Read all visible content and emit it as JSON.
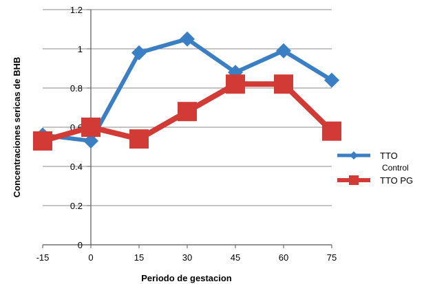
{
  "chart_data": {
    "type": "line",
    "title": "",
    "xlabel": "Periodo de gestacion",
    "ylabel": "Concentraciones sericas de BHB",
    "x": [
      -15,
      0,
      15,
      30,
      45,
      60,
      75
    ],
    "x_tick_labels": [
      "-15",
      "0",
      "15",
      "30",
      "45",
      "60",
      "75"
    ],
    "ylim": [
      0,
      1.2
    ],
    "y_tick_values": [
      0,
      0.2,
      0.4,
      0.6,
      0.8,
      1,
      1.2
    ],
    "y_tick_labels": [
      "0",
      "0.2",
      "0.4",
      "0.6",
      "0.8",
      "1",
      "1.2"
    ],
    "grid": true,
    "legend_position": "right",
    "series": [
      {
        "name": "TTO Control",
        "legend_lines": [
          "TTO",
          "Control"
        ],
        "color": "#3a7fc4",
        "marker": "diamond",
        "values": [
          0.56,
          0.53,
          0.98,
          1.05,
          0.88,
          0.99,
          0.84
        ]
      },
      {
        "name": "TTO PG",
        "legend_lines": [
          "TTO PG"
        ],
        "color": "#d23a36",
        "marker": "square",
        "values": [
          0.53,
          0.6,
          0.54,
          0.68,
          0.82,
          0.82,
          0.58
        ]
      }
    ]
  }
}
